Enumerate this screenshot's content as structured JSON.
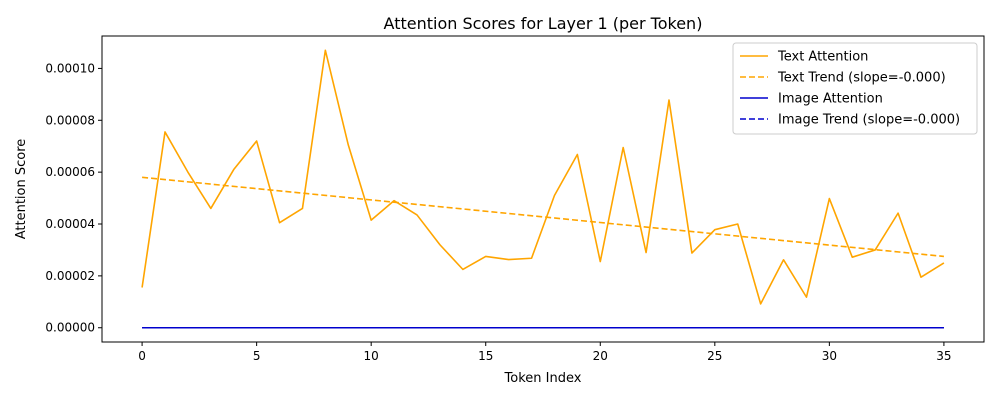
{
  "chart_data": {
    "type": "line",
    "title": "Attention Scores for Layer 1 (per Token)",
    "xlabel": "Token Index",
    "ylabel": "Attention Score",
    "xlim": [
      -1.75,
      36.75
    ],
    "ylim": [
      -5.5e-06,
      0.0001125
    ],
    "x_ticks": [
      0,
      5,
      10,
      15,
      20,
      25,
      30,
      35
    ],
    "x_tick_labels": [
      "0",
      "5",
      "10",
      "15",
      "20",
      "25",
      "30",
      "35"
    ],
    "y_ticks": [
      0,
      2e-05,
      4e-05,
      6e-05,
      8e-05,
      0.0001
    ],
    "y_tick_labels": [
      "0.00000",
      "0.00002",
      "0.00004",
      "0.00006",
      "0.00008",
      "0.00010"
    ],
    "grid": false,
    "legend_position": "top-right",
    "x": [
      0,
      1,
      2,
      3,
      4,
      5,
      6,
      7,
      8,
      9,
      10,
      11,
      12,
      13,
      14,
      15,
      16,
      17,
      18,
      19,
      20,
      21,
      22,
      23,
      24,
      25,
      26,
      27,
      28,
      29,
      30,
      31,
      32,
      33,
      34,
      35
    ],
    "series": [
      {
        "name": "Text Attention",
        "color": "#ffa500",
        "style": "solid",
        "values": [
          1.55e-05,
          7.55e-05,
          6e-05,
          4.6e-05,
          6.1e-05,
          7.2e-05,
          4.05e-05,
          4.6e-05,
          0.000107,
          7.05e-05,
          4.15e-05,
          4.9e-05,
          4.35e-05,
          3.2e-05,
          2.25e-05,
          2.75e-05,
          2.63e-05,
          2.68e-05,
          5.1e-05,
          6.68e-05,
          2.55e-05,
          6.95e-05,
          2.9e-05,
          8.78e-05,
          2.88e-05,
          3.78e-05,
          4e-05,
          9.2e-06,
          2.62e-05,
          1.18e-05,
          4.98e-05,
          2.72e-05,
          3e-05,
          4.42e-05,
          1.95e-05,
          2.5e-05
        ]
      },
      {
        "name": "Text Trend (slope=-0.000)",
        "color": "#ffa500",
        "style": "dashed",
        "trend": [
          5.8e-05,
          2.75e-05
        ]
      },
      {
        "name": "Image Attention",
        "color": "#0000cd",
        "style": "solid",
        "values": [
          0,
          0,
          0,
          0,
          0,
          0,
          0,
          0,
          0,
          0,
          0,
          0,
          0,
          0,
          0,
          0,
          0,
          0,
          0,
          0,
          0,
          0,
          0,
          0,
          0,
          0,
          0,
          0,
          0,
          0,
          0,
          0,
          0,
          0,
          0,
          0
        ]
      },
      {
        "name": "Image Trend (slope=-0.000)",
        "color": "#0000cd",
        "style": "dashed",
        "trend": [
          0,
          0
        ]
      }
    ]
  }
}
